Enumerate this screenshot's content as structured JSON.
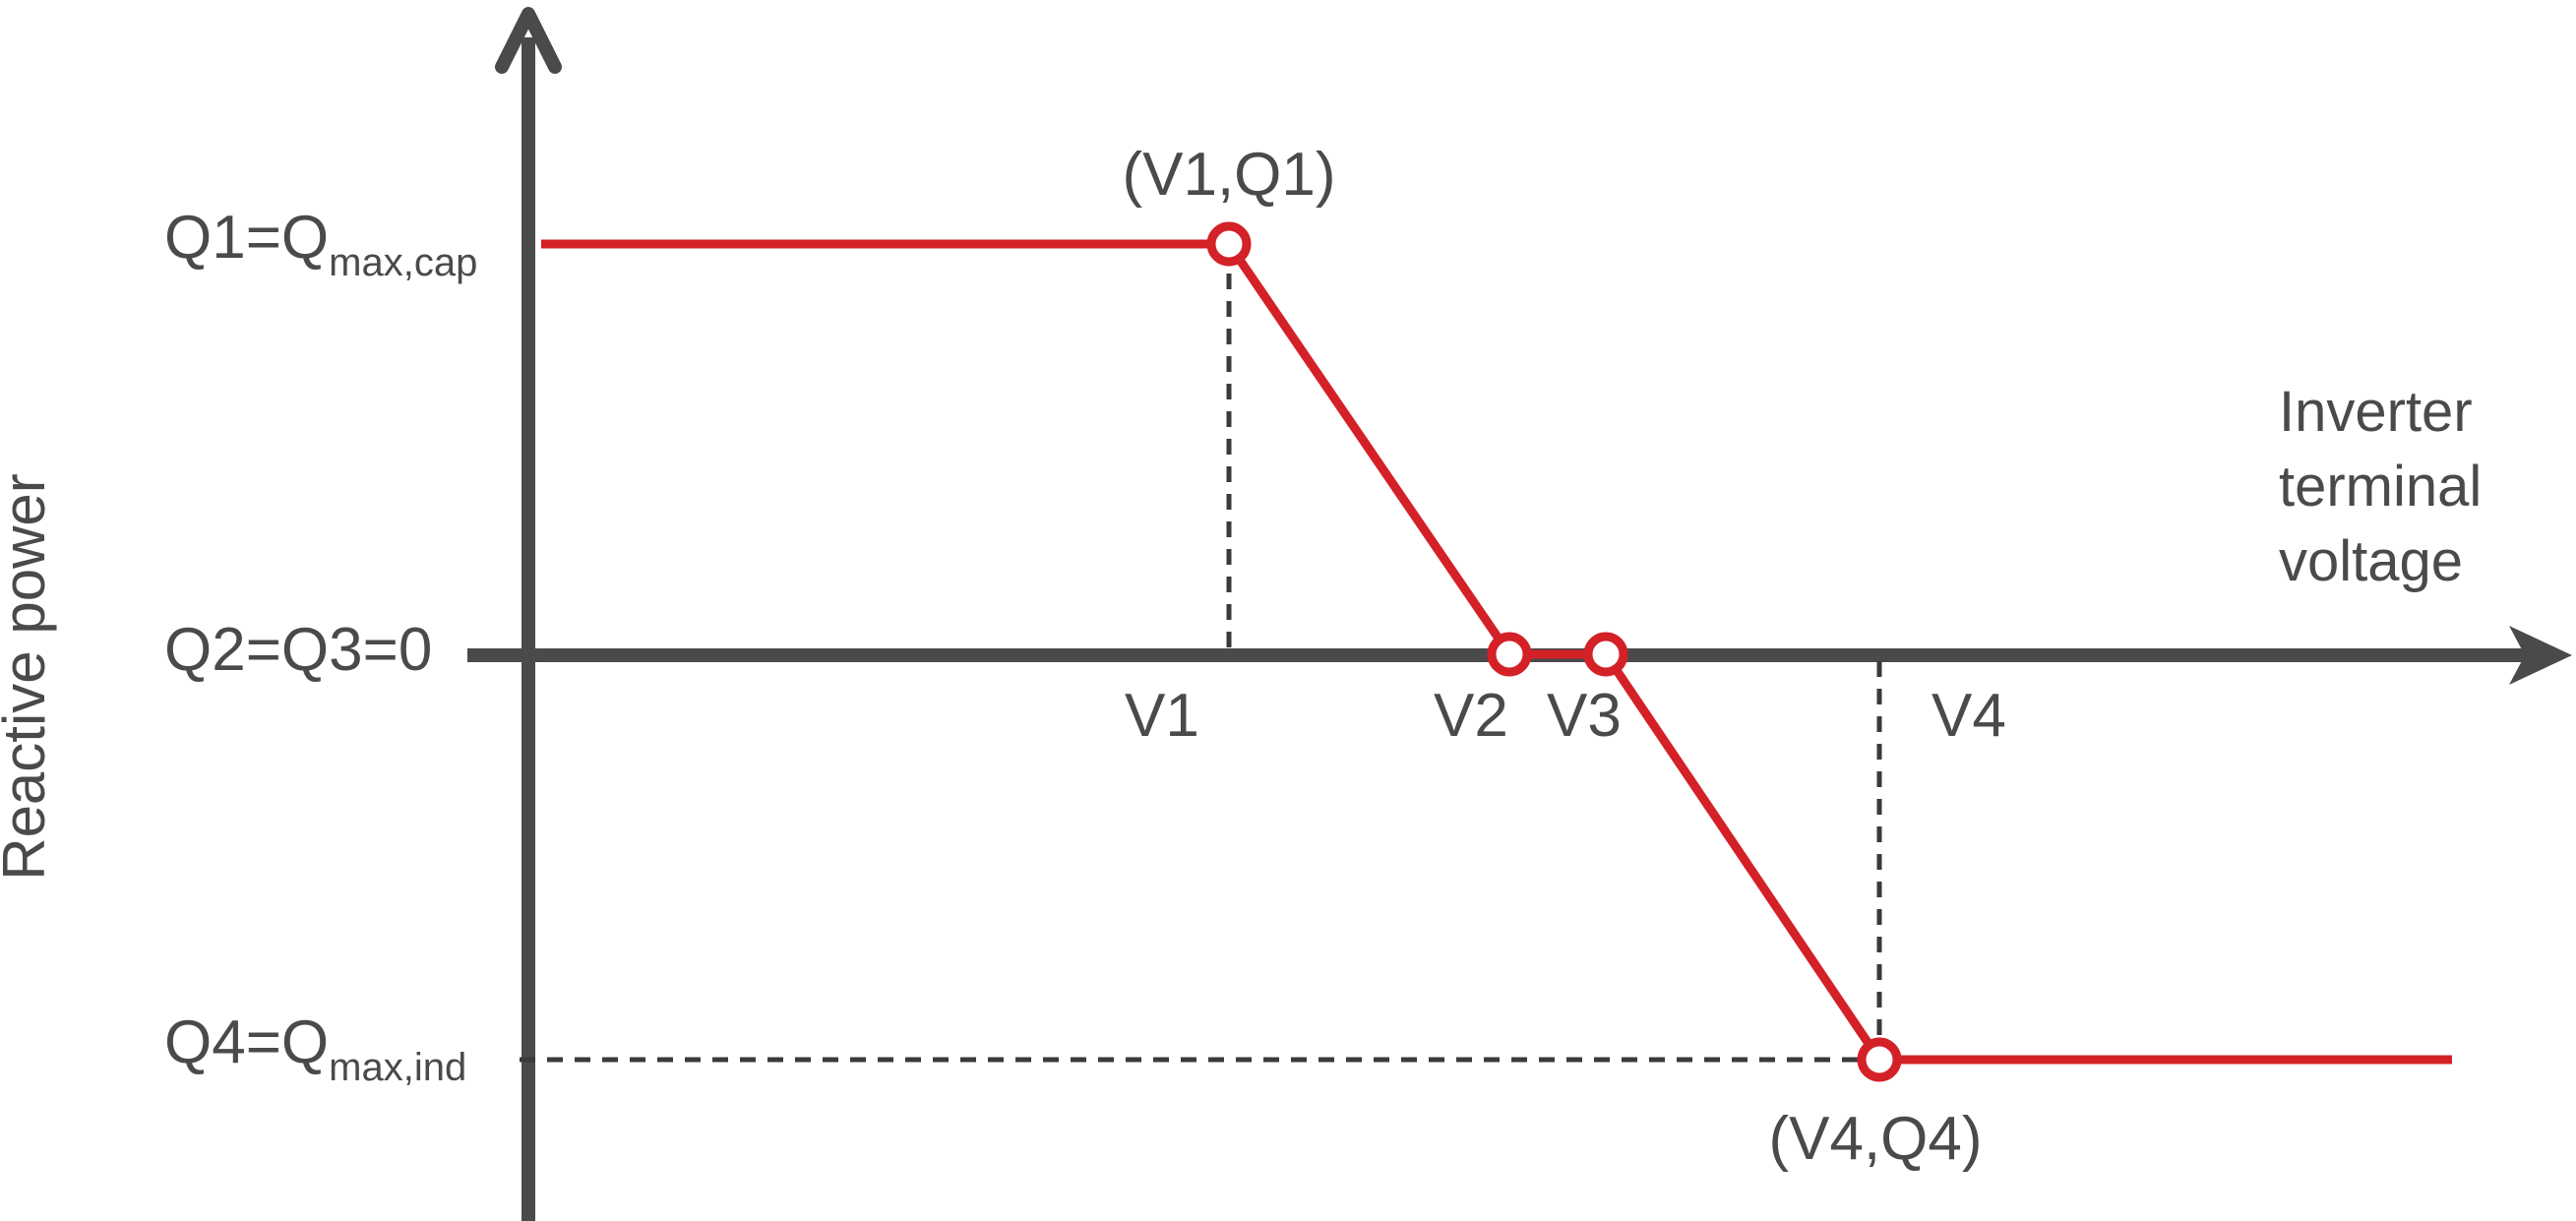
{
  "diagram": {
    "y_axis_label": "Reactive power",
    "x_axis_label_lines": [
      "Inverter",
      "terminal",
      "voltage"
    ],
    "y_ticks": {
      "q1": {
        "main": "Q1=Q",
        "sub": "max,cap"
      },
      "q23": {
        "main": "Q2=Q3=0"
      },
      "q4": {
        "main": "Q4=Q",
        "sub": "max,ind"
      }
    },
    "x_ticks": [
      "V1",
      "V2",
      "V3",
      "V4"
    ],
    "point_labels": {
      "p1": "(V1,Q1)",
      "p4": "(V4,Q4)"
    },
    "colors": {
      "curve": "#d42027",
      "axis": "#4a4a4a",
      "text": "#4a4a4a"
    }
  }
}
